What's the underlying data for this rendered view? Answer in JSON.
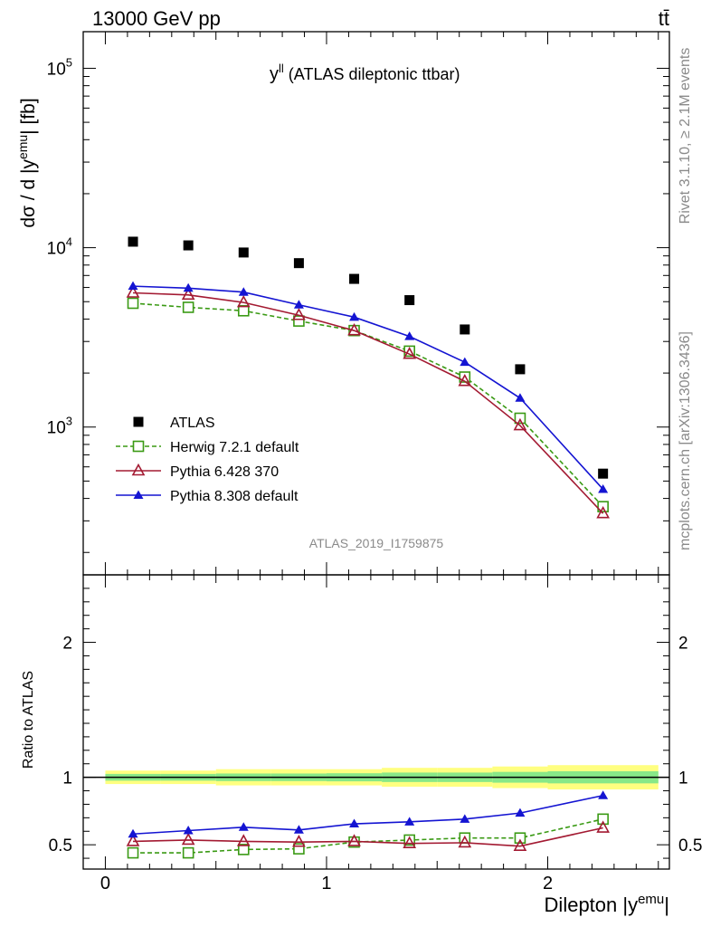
{
  "header": {
    "energy_label": "13000 GeV pp",
    "process_label": "tt̄"
  },
  "side_labels": {
    "rivet": "Rivet 3.1.10, ≥ 2.1M events",
    "mcplots": "mcplots.cern.ch [arXiv:1306.3436]"
  },
  "chart_data": [
    {
      "type": "scatter",
      "panel": "main",
      "title": "y",
      "title_superscript": "ll",
      "title_rest": " (ATLAS dileptonic ttbar)",
      "analysis_label": "ATLAS_2019_I1759875",
      "ylabel_main": "dσ / d |y",
      "ylabel_sup": "emu",
      "ylabel_tail": "| [fb]",
      "yscale": "log",
      "ylim": [
        150,
        160000
      ],
      "xlim": [
        -0.1,
        2.55
      ],
      "y_tick_labels": [
        {
          "base": "10",
          "exp": "3",
          "value": 1000
        },
        {
          "base": "10",
          "exp": "4",
          "value": 10000
        },
        {
          "base": "10",
          "exp": "5",
          "value": 100000
        }
      ],
      "x": [
        0.125,
        0.375,
        0.625,
        0.875,
        1.125,
        1.375,
        1.625,
        1.875,
        2.25
      ],
      "series": [
        {
          "name": "ATLAS",
          "marker": "square-filled",
          "color": "#000000",
          "values": [
            10800,
            10300,
            9400,
            8200,
            6700,
            5100,
            3500,
            2100,
            550
          ]
        },
        {
          "name": "Herwig 7.2.1 default",
          "marker": "square-open",
          "line": "dashed",
          "color": "#3a9a14",
          "values": [
            4900,
            4650,
            4450,
            3900,
            3450,
            2650,
            1900,
            1120,
            360
          ]
        },
        {
          "name": "Pythia 6.428 370",
          "marker": "triangle-open",
          "line": "solid",
          "color": "#a31a32",
          "values": [
            5600,
            5450,
            4950,
            4200,
            3450,
            2550,
            1800,
            1020,
            330
          ]
        },
        {
          "name": "Pythia 8.308 default",
          "marker": "triangle-filled",
          "line": "solid",
          "color": "#1414d2",
          "values": [
            6100,
            5950,
            5650,
            4800,
            4100,
            3200,
            2300,
            1450,
            450
          ]
        }
      ]
    },
    {
      "type": "line",
      "panel": "ratio",
      "ylabel": "Ratio to ATLAS",
      "xlabel_main": "Dilepton |y",
      "xlabel_sup": "emu",
      "xlabel_tail": "|",
      "ylim": [
        0.32,
        2.5
      ],
      "xlim": [
        -0.1,
        2.55
      ],
      "x_ticks": [
        0,
        1,
        2
      ],
      "x_tick_labels": [
        "0",
        "1",
        "2"
      ],
      "y_ticks": [
        0.5,
        1,
        2
      ],
      "y_tick_labels": [
        "0.5",
        "1",
        "2"
      ],
      "x": [
        0.125,
        0.375,
        0.625,
        0.875,
        1.125,
        1.375,
        1.625,
        1.875,
        2.25
      ],
      "bin_edges": [
        0,
        0.25,
        0.5,
        0.75,
        1.0,
        1.25,
        1.5,
        1.75,
        2.0,
        2.5
      ],
      "band_outer": [
        0.05,
        0.05,
        0.06,
        0.06,
        0.06,
        0.07,
        0.07,
        0.08,
        0.09
      ],
      "band_inner": [
        0.025,
        0.025,
        0.028,
        0.028,
        0.03,
        0.035,
        0.035,
        0.04,
        0.045
      ],
      "band_colors": {
        "outer": "#ffff80",
        "inner": "#88e888"
      },
      "series": [
        {
          "name": "Herwig 7.2.1 default",
          "marker": "square-open",
          "line": "dashed",
          "color": "#3a9a14",
          "values": [
            0.44,
            0.44,
            0.465,
            0.47,
            0.52,
            0.535,
            0.55,
            0.55,
            0.69
          ]
        },
        {
          "name": "Pythia 6.428 370",
          "marker": "triangle-open",
          "line": "solid",
          "color": "#a31a32",
          "values": [
            0.525,
            0.535,
            0.525,
            0.52,
            0.525,
            0.51,
            0.515,
            0.49,
            0.625
          ]
        },
        {
          "name": "Pythia 8.308 default",
          "marker": "triangle-filled",
          "line": "solid",
          "color": "#1414d2",
          "values": [
            0.58,
            0.605,
            0.63,
            0.61,
            0.655,
            0.67,
            0.69,
            0.735,
            0.865
          ]
        }
      ]
    }
  ]
}
